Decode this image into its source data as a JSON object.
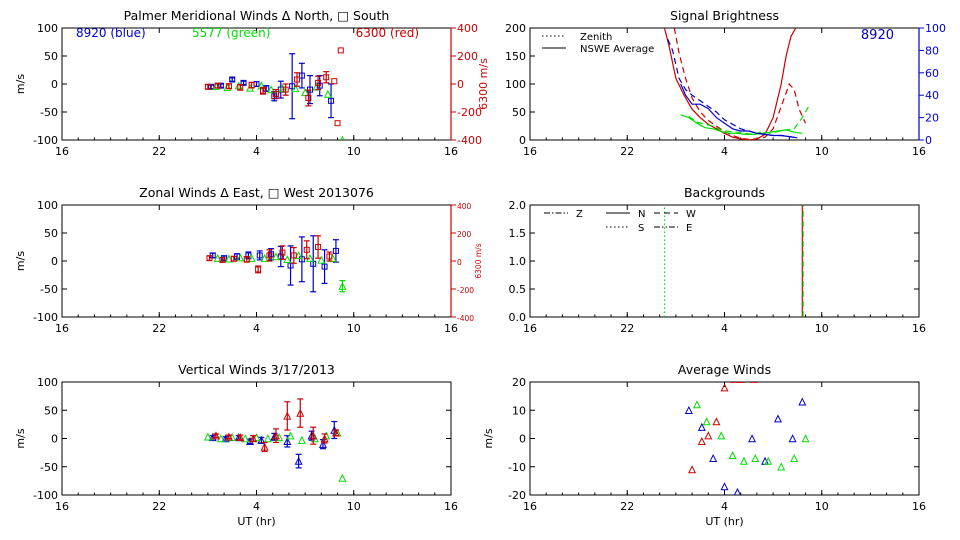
{
  "colors": {
    "blue": "#0000cc",
    "green": "#00dd00",
    "red": "#cc0000",
    "axis": "#000000"
  },
  "chart_data": [
    {
      "id": "meridional",
      "type": "scatter",
      "title": "Palmer Meridional Winds Δ North, □ South",
      "ylabel": "m/s",
      "y2label": "6300 m/s",
      "ylim": [
        -100,
        100
      ],
      "y2lim": [
        -400,
        400
      ],
      "yticks": [
        -100,
        -50,
        0,
        50,
        100
      ],
      "y2ticks": [
        -400,
        -200,
        0,
        200,
        400
      ],
      "xticks": [
        "16",
        "22",
        "4",
        "10",
        "16"
      ],
      "annotations": [
        "8920 (blue)",
        "5577 (green)",
        "6300 (red)"
      ],
      "series": [
        {
          "color": "blue",
          "x": [
            25.2,
            25.8,
            26.5,
            27.2,
            28.0,
            28.6,
            29.1,
            29.5,
            30.2,
            30.8,
            31.3,
            31.9,
            32.6
          ],
          "y": [
            -5,
            -3,
            8,
            2,
            0,
            -8,
            -22,
            -10,
            -4,
            15,
            -10,
            -3,
            -30
          ],
          "err": [
            3,
            3,
            3,
            3,
            4,
            5,
            8,
            15,
            58,
            22,
            25,
            18,
            30
          ]
        },
        {
          "color": "green",
          "x": [
            25.5,
            26.2,
            26.9,
            27.6,
            28.3,
            28.9,
            29.6,
            30.4,
            31.0,
            31.7,
            32.4,
            33.3
          ],
          "y": [
            -4,
            -6,
            -3,
            -7,
            -3,
            -10,
            -8,
            -8,
            -15,
            -5,
            -18,
            -100
          ]
        },
        {
          "color": "red",
          "x": [
            25.0,
            25.6,
            26.3,
            27.0,
            27.7,
            28.4,
            29.2,
            29.8,
            30.5,
            31.2,
            31.8,
            32.3,
            32.8,
            33.0,
            33.2
          ],
          "y": [
            -5,
            -3,
            -4,
            -6,
            -2,
            -12,
            -18,
            -10,
            8,
            -25,
            2,
            12,
            5,
            -70,
            60
          ],
          "err": [
            4,
            4,
            4,
            5,
            5,
            6,
            8,
            10,
            12,
            14,
            12,
            10,
            0,
            0,
            0
          ]
        }
      ]
    },
    {
      "id": "zonal",
      "type": "scatter",
      "title": "Zonal Winds Δ East, □ West 2013076",
      "ylabel": "m/s",
      "y2label": "6300 m/s",
      "ylim": [
        -100,
        100
      ],
      "y2lim": [
        -400,
        400
      ],
      "yticks": [
        -100,
        -50,
        0,
        50,
        100
      ],
      "y2ticks": [
        -400,
        -200,
        0,
        200,
        400
      ],
      "xticks": [
        "16",
        "22",
        "4",
        "10",
        "16"
      ],
      "series": [
        {
          "color": "blue",
          "x": [
            25.3,
            26.0,
            26.8,
            27.5,
            28.2,
            28.9,
            29.5,
            30.1,
            30.8,
            31.5,
            32.2,
            32.9
          ],
          "y": [
            10,
            5,
            8,
            10,
            10,
            12,
            8,
            -8,
            3,
            -5,
            -10,
            18
          ],
          "err": [
            4,
            4,
            5,
            6,
            8,
            10,
            18,
            35,
            40,
            50,
            30,
            20
          ]
        },
        {
          "color": "green",
          "x": [
            25.6,
            26.3,
            27.0,
            27.7,
            28.5,
            29.2,
            29.9,
            30.6,
            31.3,
            32.0,
            32.7,
            33.3
          ],
          "y": [
            5,
            4,
            6,
            5,
            5,
            8,
            3,
            10,
            5,
            2,
            5,
            -45
          ],
          "err": [
            0,
            0,
            0,
            0,
            0,
            0,
            0,
            0,
            0,
            0,
            0,
            10
          ]
        },
        {
          "color": "red",
          "x": [
            25.1,
            25.9,
            26.6,
            27.4,
            28.1,
            28.8,
            29.6,
            30.3,
            31.1,
            31.8,
            32.5
          ],
          "y": [
            5,
            2,
            4,
            3,
            -15,
            10,
            15,
            10,
            20,
            25,
            8
          ],
          "err": [
            4,
            4,
            4,
            5,
            6,
            10,
            12,
            14,
            16,
            20,
            8
          ]
        }
      ]
    },
    {
      "id": "vertical",
      "type": "scatter",
      "title": "Vertical Winds 3/17/2013",
      "ylabel": "m/s",
      "xlabel": "UT (hr)",
      "ylim": [
        -100,
        100
      ],
      "yticks": [
        -100,
        -50,
        0,
        50,
        100
      ],
      "xticks": [
        "16",
        "22",
        "4",
        "10",
        "16"
      ],
      "series": [
        {
          "color": "blue",
          "x": [
            25.3,
            26.1,
            26.9,
            27.6,
            28.3,
            29.1,
            29.9,
            30.6,
            31.4,
            32.1,
            32.8
          ],
          "y": [
            2,
            0,
            2,
            -5,
            -3,
            3,
            -5,
            -40,
            5,
            -10,
            15
          ],
          "err": [
            3,
            3,
            3,
            4,
            5,
            6,
            10,
            12,
            8,
            8,
            15
          ]
        },
        {
          "color": "green",
          "x": [
            25.0,
            25.8,
            26.5,
            27.3,
            28.0,
            28.7,
            29.4,
            30.1,
            30.8,
            31.6,
            32.3,
            33.0,
            33.3
          ],
          "y": [
            3,
            0,
            2,
            0,
            2,
            0,
            2,
            5,
            -3,
            0,
            5,
            10,
            -70
          ]
        },
        {
          "color": "red",
          "x": [
            25.5,
            26.3,
            27.0,
            27.8,
            28.5,
            29.2,
            29.9,
            30.7,
            31.5,
            32.2,
            32.9
          ],
          "y": [
            5,
            3,
            2,
            0,
            -15,
            5,
            40,
            45,
            5,
            0,
            10
          ],
          "err": [
            3,
            3,
            4,
            5,
            8,
            12,
            25,
            25,
            15,
            8,
            5
          ]
        }
      ]
    },
    {
      "id": "brightness",
      "type": "line",
      "title": "Signal Brightness",
      "ylim": [
        0,
        200
      ],
      "y2lim": [
        0,
        100
      ],
      "yticks": [
        0,
        50,
        100,
        150,
        200
      ],
      "y2ticks": [
        0,
        20,
        40,
        60,
        80,
        100
      ],
      "xticks": [
        "16",
        "22",
        "4",
        "10",
        "16"
      ],
      "legend": [
        "Zenith",
        "NSWE Average"
      ],
      "annotations": [
        "8920"
      ],
      "series": [
        {
          "color": "red",
          "style": "solid",
          "x": [
            24.3,
            24.6,
            25.0,
            25.5,
            26.0,
            26.5,
            27.0,
            27.5,
            28.0,
            28.5,
            29.0,
            29.5,
            30.0,
            30.5,
            31.0,
            31.5,
            31.8,
            32.1,
            32.4
          ],
          "y": [
            200,
            165,
            110,
            80,
            55,
            40,
            28,
            20,
            12,
            5,
            2,
            0,
            2,
            10,
            40,
            100,
            150,
            185,
            200
          ]
        },
        {
          "color": "red",
          "style": "dashed",
          "x": [
            24.9,
            25.2,
            25.6,
            26.0,
            26.5,
            27.0,
            27.5,
            28.0,
            28.5,
            29.0,
            29.5,
            30.0,
            30.5,
            31.0,
            31.5,
            32.0,
            32.3,
            32.6,
            33.0
          ],
          "y": [
            200,
            155,
            110,
            75,
            50,
            35,
            25,
            15,
            8,
            3,
            1,
            2,
            5,
            20,
            60,
            100,
            90,
            55,
            30
          ]
        },
        {
          "color": "green",
          "style": "solid",
          "x": [
            25.3,
            25.8,
            26.3,
            26.8,
            27.3,
            27.8,
            28.3,
            28.8,
            29.3,
            29.8,
            30.3,
            30.8,
            31.3,
            31.8,
            32.3,
            32.8
          ],
          "y": [
            45,
            40,
            30,
            22,
            20,
            15,
            12,
            12,
            10,
            10,
            12,
            14,
            16,
            18,
            14,
            12
          ]
        },
        {
          "color": "green",
          "style": "dashed",
          "x": [
            25.8,
            26.3,
            26.8,
            27.3,
            27.8,
            28.3,
            28.8,
            29.3,
            29.8,
            30.3,
            30.8,
            31.3,
            31.8,
            32.3,
            32.8,
            33.2
          ],
          "y": [
            42,
            32,
            28,
            25,
            18,
            15,
            14,
            12,
            10,
            15,
            12,
            15,
            18,
            20,
            40,
            60
          ]
        },
        {
          "color": "blue",
          "style": "solid",
          "axis": "right",
          "x": [
            25.3,
            25.6,
            26.0,
            26.5,
            27.0,
            27.5,
            28.0,
            28.5,
            29.0,
            29.5,
            30.0,
            30.5,
            31.0,
            31.5,
            32.0,
            32.5
          ],
          "y": [
            50,
            40,
            32,
            32,
            28,
            20,
            15,
            10,
            8,
            8,
            6,
            5,
            4,
            4,
            3,
            2
          ]
        },
        {
          "color": "blue",
          "style": "dashed",
          "axis": "right",
          "x": [
            24.5,
            24.8,
            25.2,
            25.6,
            26.0,
            26.5,
            27.0,
            27.5,
            28.0,
            28.5,
            29.0,
            29.5,
            30.0,
            30.5,
            31.0,
            31.5,
            32.0,
            32.5
          ],
          "y": [
            90,
            80,
            55,
            45,
            40,
            35,
            30,
            25,
            18,
            14,
            10,
            8,
            6,
            5,
            4,
            4,
            3,
            2
          ]
        }
      ]
    },
    {
      "id": "backgrounds",
      "type": "line",
      "title": "Backgrounds",
      "ylim": [
        0,
        2
      ],
      "yticks": [
        "0.0",
        "0.5",
        "1.0",
        "1.5",
        "2.0"
      ],
      "xticks": [
        "16",
        "22",
        "4",
        "10",
        "16"
      ],
      "legend": [
        "Z",
        "N",
        "W",
        "S",
        "E"
      ],
      "series": [
        {
          "color": "green",
          "style": "dotted",
          "x": [
            24.3,
            24.3
          ],
          "y": [
            0,
            2
          ]
        },
        {
          "color": "red",
          "style": "solid",
          "x": [
            32.8,
            32.8
          ],
          "y": [
            0,
            2
          ]
        },
        {
          "color": "green",
          "style": "dashed",
          "x": [
            32.85,
            32.85
          ],
          "y": [
            0,
            2
          ]
        }
      ]
    },
    {
      "id": "average",
      "type": "scatter",
      "title": "Average Winds",
      "ylabel": "m/s",
      "xlabel": "UT (hr)",
      "ylim": [
        -20,
        20
      ],
      "yticks": [
        -20,
        -10,
        0,
        10,
        20
      ],
      "xticks": [
        "16",
        "22",
        "4",
        "10",
        "16"
      ],
      "series": [
        {
          "color": "blue",
          "x": [
            25.8,
            26.6,
            27.3,
            28.0,
            28.8,
            29.7,
            30.5,
            31.3,
            32.2,
            32.8
          ],
          "y": [
            10,
            4,
            -7,
            -17,
            -19,
            0,
            -8,
            7,
            0,
            13
          ]
        },
        {
          "color": "green",
          "x": [
            26.3,
            26.9,
            27.8,
            28.5,
            29.2,
            29.9,
            30.7,
            31.5,
            32.3,
            33.0
          ],
          "y": [
            12,
            6,
            1,
            -6,
            -8,
            -7,
            -8,
            -10,
            -7,
            0
          ]
        },
        {
          "color": "red",
          "x": [
            26.0,
            26.6,
            27.0,
            27.5,
            28.0,
            28.6,
            29.0,
            29.8
          ],
          "y": [
            -11,
            -1,
            1,
            6,
            18,
            21,
            21,
            21
          ]
        }
      ]
    }
  ]
}
